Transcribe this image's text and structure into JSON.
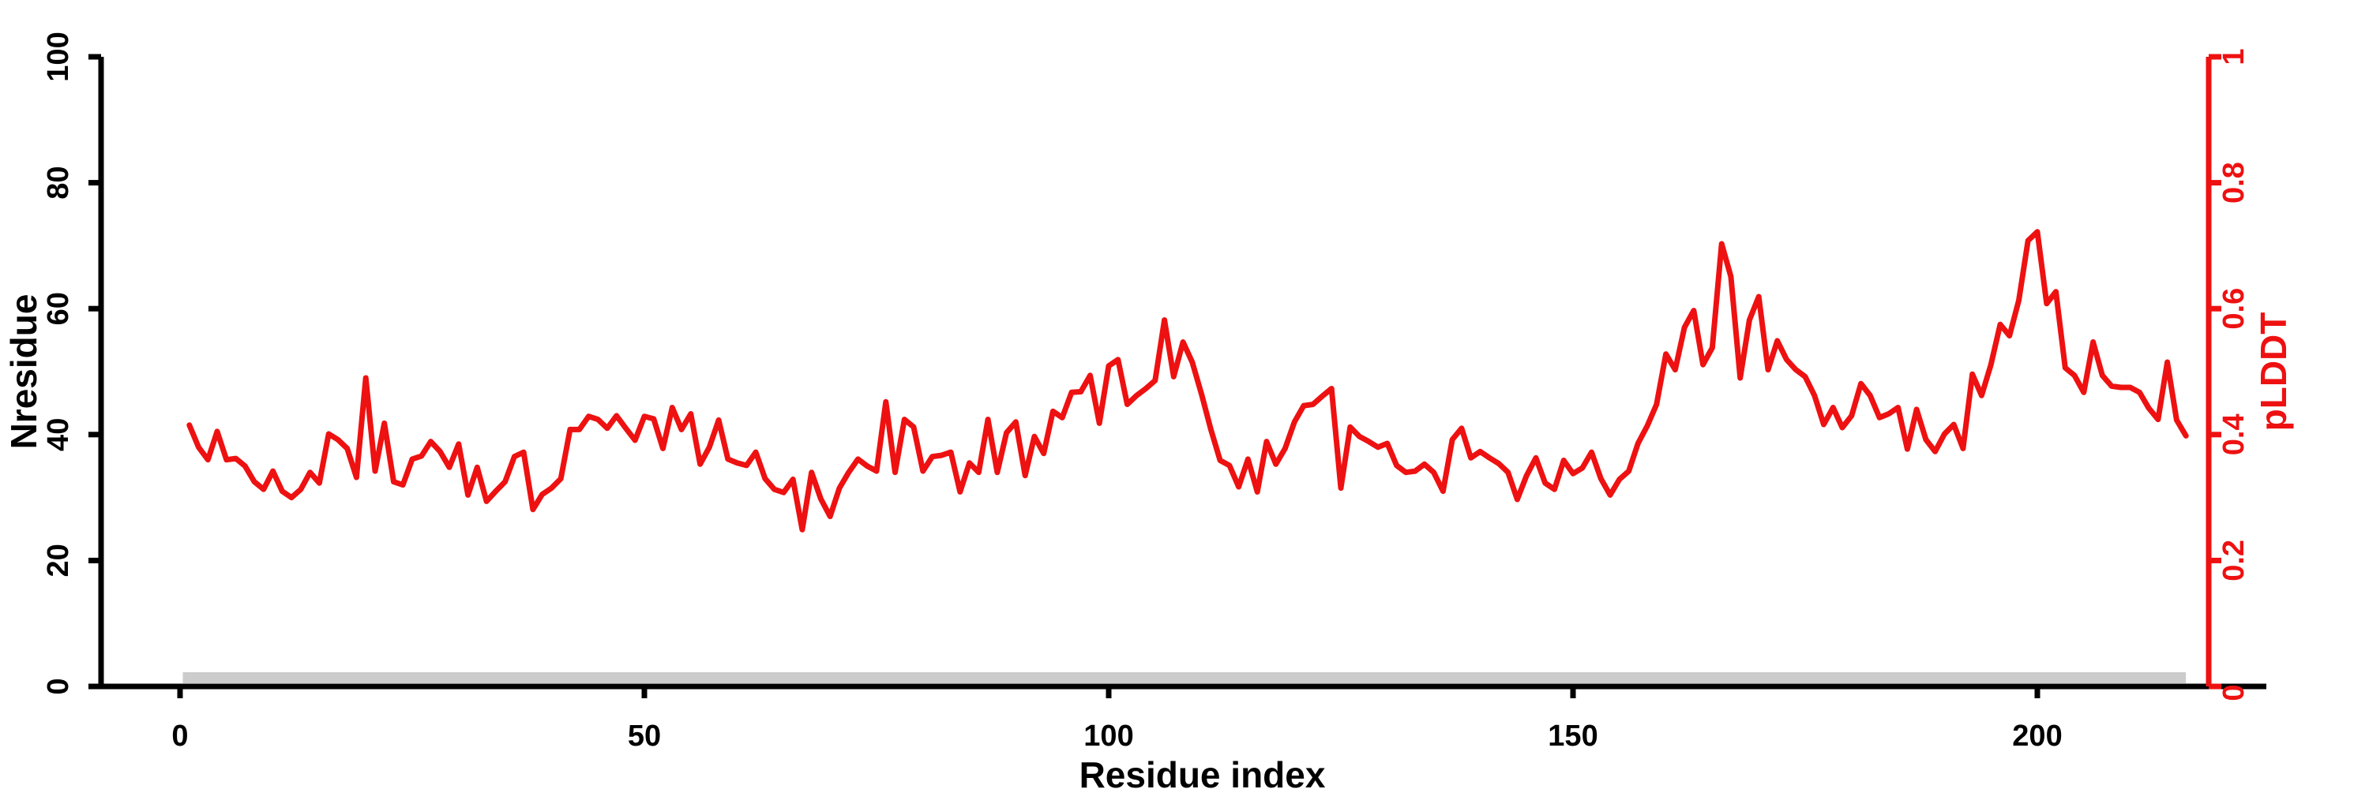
{
  "page": {
    "background": "#ffffff"
  },
  "chart_data": {
    "type": "line",
    "title": "",
    "xlabel": "Residue index",
    "left_axis": {
      "label": "Nresidue",
      "ticks": [
        0,
        20,
        40,
        60,
        80,
        100
      ],
      "range": [
        0,
        100
      ],
      "color": "#000000"
    },
    "right_axis": {
      "label": "pLDDT",
      "tick_labels": [
        "0",
        "0.2",
        "0.4",
        "0.6",
        "0.8",
        "1"
      ],
      "tick_values": [
        0,
        0.2,
        0.4,
        0.6,
        0.8,
        1
      ],
      "range": [
        0,
        1
      ],
      "color": "#ee1111"
    },
    "x_axis": {
      "ticks": [
        0,
        50,
        100,
        150,
        200
      ],
      "range": [
        0,
        218
      ]
    },
    "grid": false,
    "legend": false,
    "series": [
      {
        "name": "pLDDT",
        "color": "#ee1111",
        "x_start_residue": 1,
        "values": [
          0.415,
          0.38,
          0.36,
          0.405,
          0.36,
          0.362,
          0.35,
          0.325,
          0.313,
          0.342,
          0.31,
          0.3,
          0.313,
          0.34,
          0.323,
          0.401,
          0.392,
          0.378,
          0.332,
          0.49,
          0.342,
          0.418,
          0.325,
          0.32,
          0.361,
          0.366,
          0.389,
          0.373,
          0.348,
          0.385,
          0.304,
          0.348,
          0.294,
          0.31,
          0.325,
          0.365,
          0.372,
          0.281,
          0.305,
          0.315,
          0.33,
          0.408,
          0.408,
          0.429,
          0.424,
          0.41,
          0.43,
          0.41,
          0.391,
          0.429,
          0.425,
          0.378,
          0.443,
          0.408,
          0.433,
          0.353,
          0.38,
          0.423,
          0.361,
          0.355,
          0.351,
          0.372,
          0.33,
          0.313,
          0.308,
          0.329,
          0.249,
          0.34,
          0.298,
          0.27,
          0.315,
          0.34,
          0.361,
          0.35,
          0.342,
          0.452,
          0.34,
          0.424,
          0.412,
          0.342,
          0.365,
          0.367,
          0.372,
          0.309,
          0.355,
          0.34,
          0.424,
          0.34,
          0.403,
          0.42,
          0.335,
          0.397,
          0.37,
          0.437,
          0.427,
          0.467,
          0.468,
          0.494,
          0.418,
          0.509,
          0.519,
          0.448,
          0.462,
          0.473,
          0.486,
          0.582,
          0.492,
          0.547,
          0.515,
          0.464,
          0.408,
          0.359,
          0.351,
          0.317,
          0.361,
          0.309,
          0.389,
          0.353,
          0.378,
          0.42,
          0.446,
          0.448,
          0.461,
          0.473,
          0.315,
          0.412,
          0.397,
          0.389,
          0.38,
          0.386,
          0.351,
          0.34,
          0.342,
          0.353,
          0.34,
          0.31,
          0.392,
          0.41,
          0.363,
          0.373,
          0.363,
          0.354,
          0.34,
          0.297,
          0.335,
          0.363,
          0.323,
          0.313,
          0.359,
          0.338,
          0.347,
          0.372,
          0.33,
          0.304,
          0.329,
          0.342,
          0.386,
          0.414,
          0.448,
          0.528,
          0.503,
          0.57,
          0.597,
          0.511,
          0.538,
          0.703,
          0.651,
          0.49,
          0.582,
          0.619,
          0.503,
          0.549,
          0.519,
          0.503,
          0.492,
          0.462,
          0.416,
          0.443,
          0.411,
          0.43,
          0.481,
          0.462,
          0.427,
          0.433,
          0.443,
          0.377,
          0.44,
          0.392,
          0.373,
          0.401,
          0.416,
          0.378,
          0.496,
          0.462,
          0.511,
          0.575,
          0.557,
          0.613,
          0.708,
          0.722,
          0.608,
          0.627,
          0.506,
          0.494,
          0.467,
          0.547,
          0.494,
          0.477,
          0.475,
          0.475,
          0.467,
          0.442,
          0.424,
          0.515,
          0.423,
          0.398
        ]
      }
    ],
    "annotations": [
      {
        "type": "band",
        "name": "baseline-band",
        "x_from_residue": 0.3,
        "x_to_residue": 216,
        "color": "#cccccc",
        "description": "gray horizontal band along the baseline of the plot"
      }
    ]
  }
}
